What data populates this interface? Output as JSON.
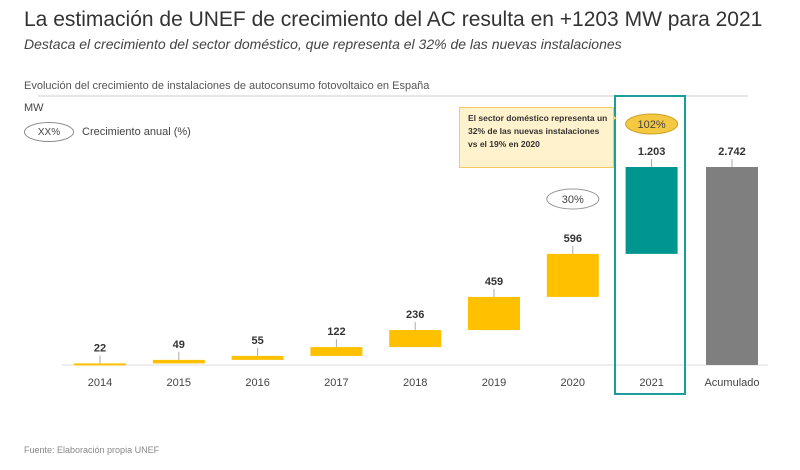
{
  "header": {
    "title": "La estimación de UNEF de crecimiento del AC resulta en +1203 MW para 2021",
    "subtitle": "Destaca el crecimiento del sector doméstico, que representa el 32% de las nuevas instalaciones"
  },
  "chart_data": {
    "type": "bar",
    "subtype": "waterfall",
    "title": "Evolución del crecimiento de instalaciones de autoconsumo fotovoltaico en España",
    "ylabel": "MW",
    "categories": [
      "2014",
      "2015",
      "2016",
      "2017",
      "2018",
      "2019",
      "2020",
      "2021",
      "Acumulado"
    ],
    "values": [
      22,
      49,
      55,
      122,
      236,
      459,
      596,
      1203,
      2742
    ],
    "value_labels": [
      "22",
      "49",
      "55",
      "122",
      "236",
      "459",
      "596",
      "1.203",
      "2.742"
    ],
    "bar_kinds": [
      "increment",
      "increment",
      "increment",
      "increment",
      "increment",
      "increment",
      "increment",
      "highlight",
      "total"
    ],
    "growth_labels": [
      {
        "category": "2020",
        "label": "30%"
      },
      {
        "category": "2021",
        "label": "102%"
      }
    ],
    "legend": {
      "symbol": "XX%",
      "label": "Crecimiento anual (%)"
    },
    "annotation": "El sector doméstico representa un 32% de las nuevas instalaciones vs el 19% en 2020",
    "ylim": [
      0,
      2742
    ],
    "colors": {
      "increment": "#ffc000",
      "highlight": "#009690",
      "total": "#7f7f7f",
      "frame": "#1a9e9a",
      "growth_fill": "#f5c842"
    }
  },
  "footer": {
    "source": "Fuente: Elaboración propia UNEF"
  }
}
